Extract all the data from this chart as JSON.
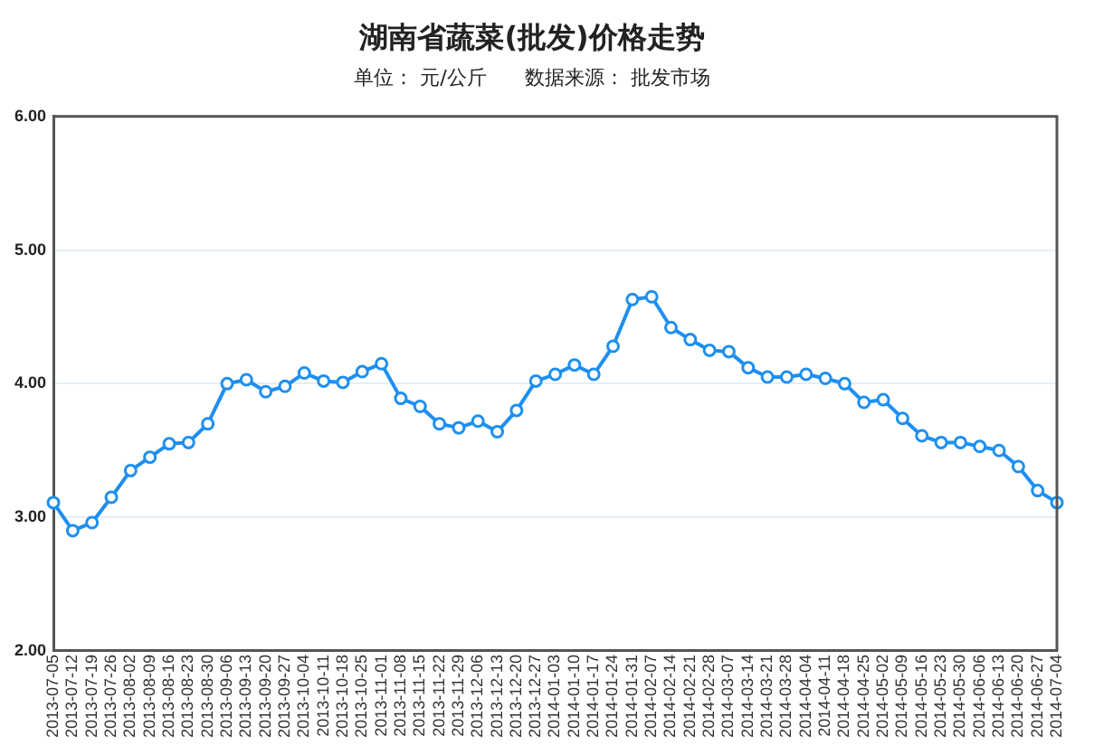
{
  "chart_data": {
    "type": "line",
    "title": "湖南省蔬菜(批发)价格走势",
    "subtitle": "单位： 元/公斤      数据来源： 批发市场",
    "categories": [
      "2013-07-05",
      "2013-07-12",
      "2013-07-19",
      "2013-07-26",
      "2013-08-02",
      "2013-08-09",
      "2013-08-16",
      "2013-08-23",
      "2013-08-30",
      "2013-09-06",
      "2013-09-13",
      "2013-09-20",
      "2013-09-27",
      "2013-10-04",
      "2013-10-11",
      "2013-10-18",
      "2013-10-25",
      "2013-11-01",
      "2013-11-08",
      "2013-11-15",
      "2013-11-22",
      "2013-11-29",
      "2013-12-06",
      "2013-12-13",
      "2013-12-20",
      "2013-12-27",
      "2014-01-03",
      "2014-01-10",
      "2014-01-17",
      "2014-01-24",
      "2014-01-31",
      "2014-02-07",
      "2014-02-14",
      "2014-02-21",
      "2014-02-28",
      "2014-03-07",
      "2014-03-14",
      "2014-03-21",
      "2014-03-28",
      "2014-04-04",
      "2014-04-11",
      "2014-04-18",
      "2014-04-25",
      "2014-05-02",
      "2014-05-09",
      "2014-05-16",
      "2014-05-23",
      "2014-05-30",
      "2014-06-06",
      "2014-06-13",
      "2014-06-20",
      "2014-06-27",
      "2014-07-04"
    ],
    "values": [
      3.11,
      2.9,
      2.96,
      3.15,
      3.35,
      3.45,
      3.55,
      3.56,
      3.7,
      4.0,
      4.03,
      3.94,
      3.98,
      4.08,
      4.02,
      4.01,
      4.09,
      4.15,
      3.89,
      3.83,
      3.7,
      3.67,
      3.72,
      3.64,
      3.8,
      4.02,
      4.07,
      4.14,
      4.07,
      4.28,
      4.63,
      4.65,
      4.42,
      4.33,
      4.25,
      4.24,
      4.12,
      4.05,
      4.05,
      4.07,
      4.04,
      4.0,
      3.86,
      3.88,
      3.74,
      3.61,
      3.56,
      3.56,
      3.53,
      3.5,
      3.38,
      3.2,
      3.11
    ],
    "color": "#1e8ff0",
    "ylim": [
      2,
      6
    ],
    "yticks": [
      {
        "value": 2,
        "label": "2.00"
      },
      {
        "value": 3,
        "label": "3.00"
      },
      {
        "value": 4,
        "label": "4.00"
      },
      {
        "value": 5,
        "label": "5.00"
      },
      {
        "value": 6,
        "label": "6.00"
      }
    ],
    "grid": "y",
    "marker": "circle",
    "line_style": "solid"
  }
}
